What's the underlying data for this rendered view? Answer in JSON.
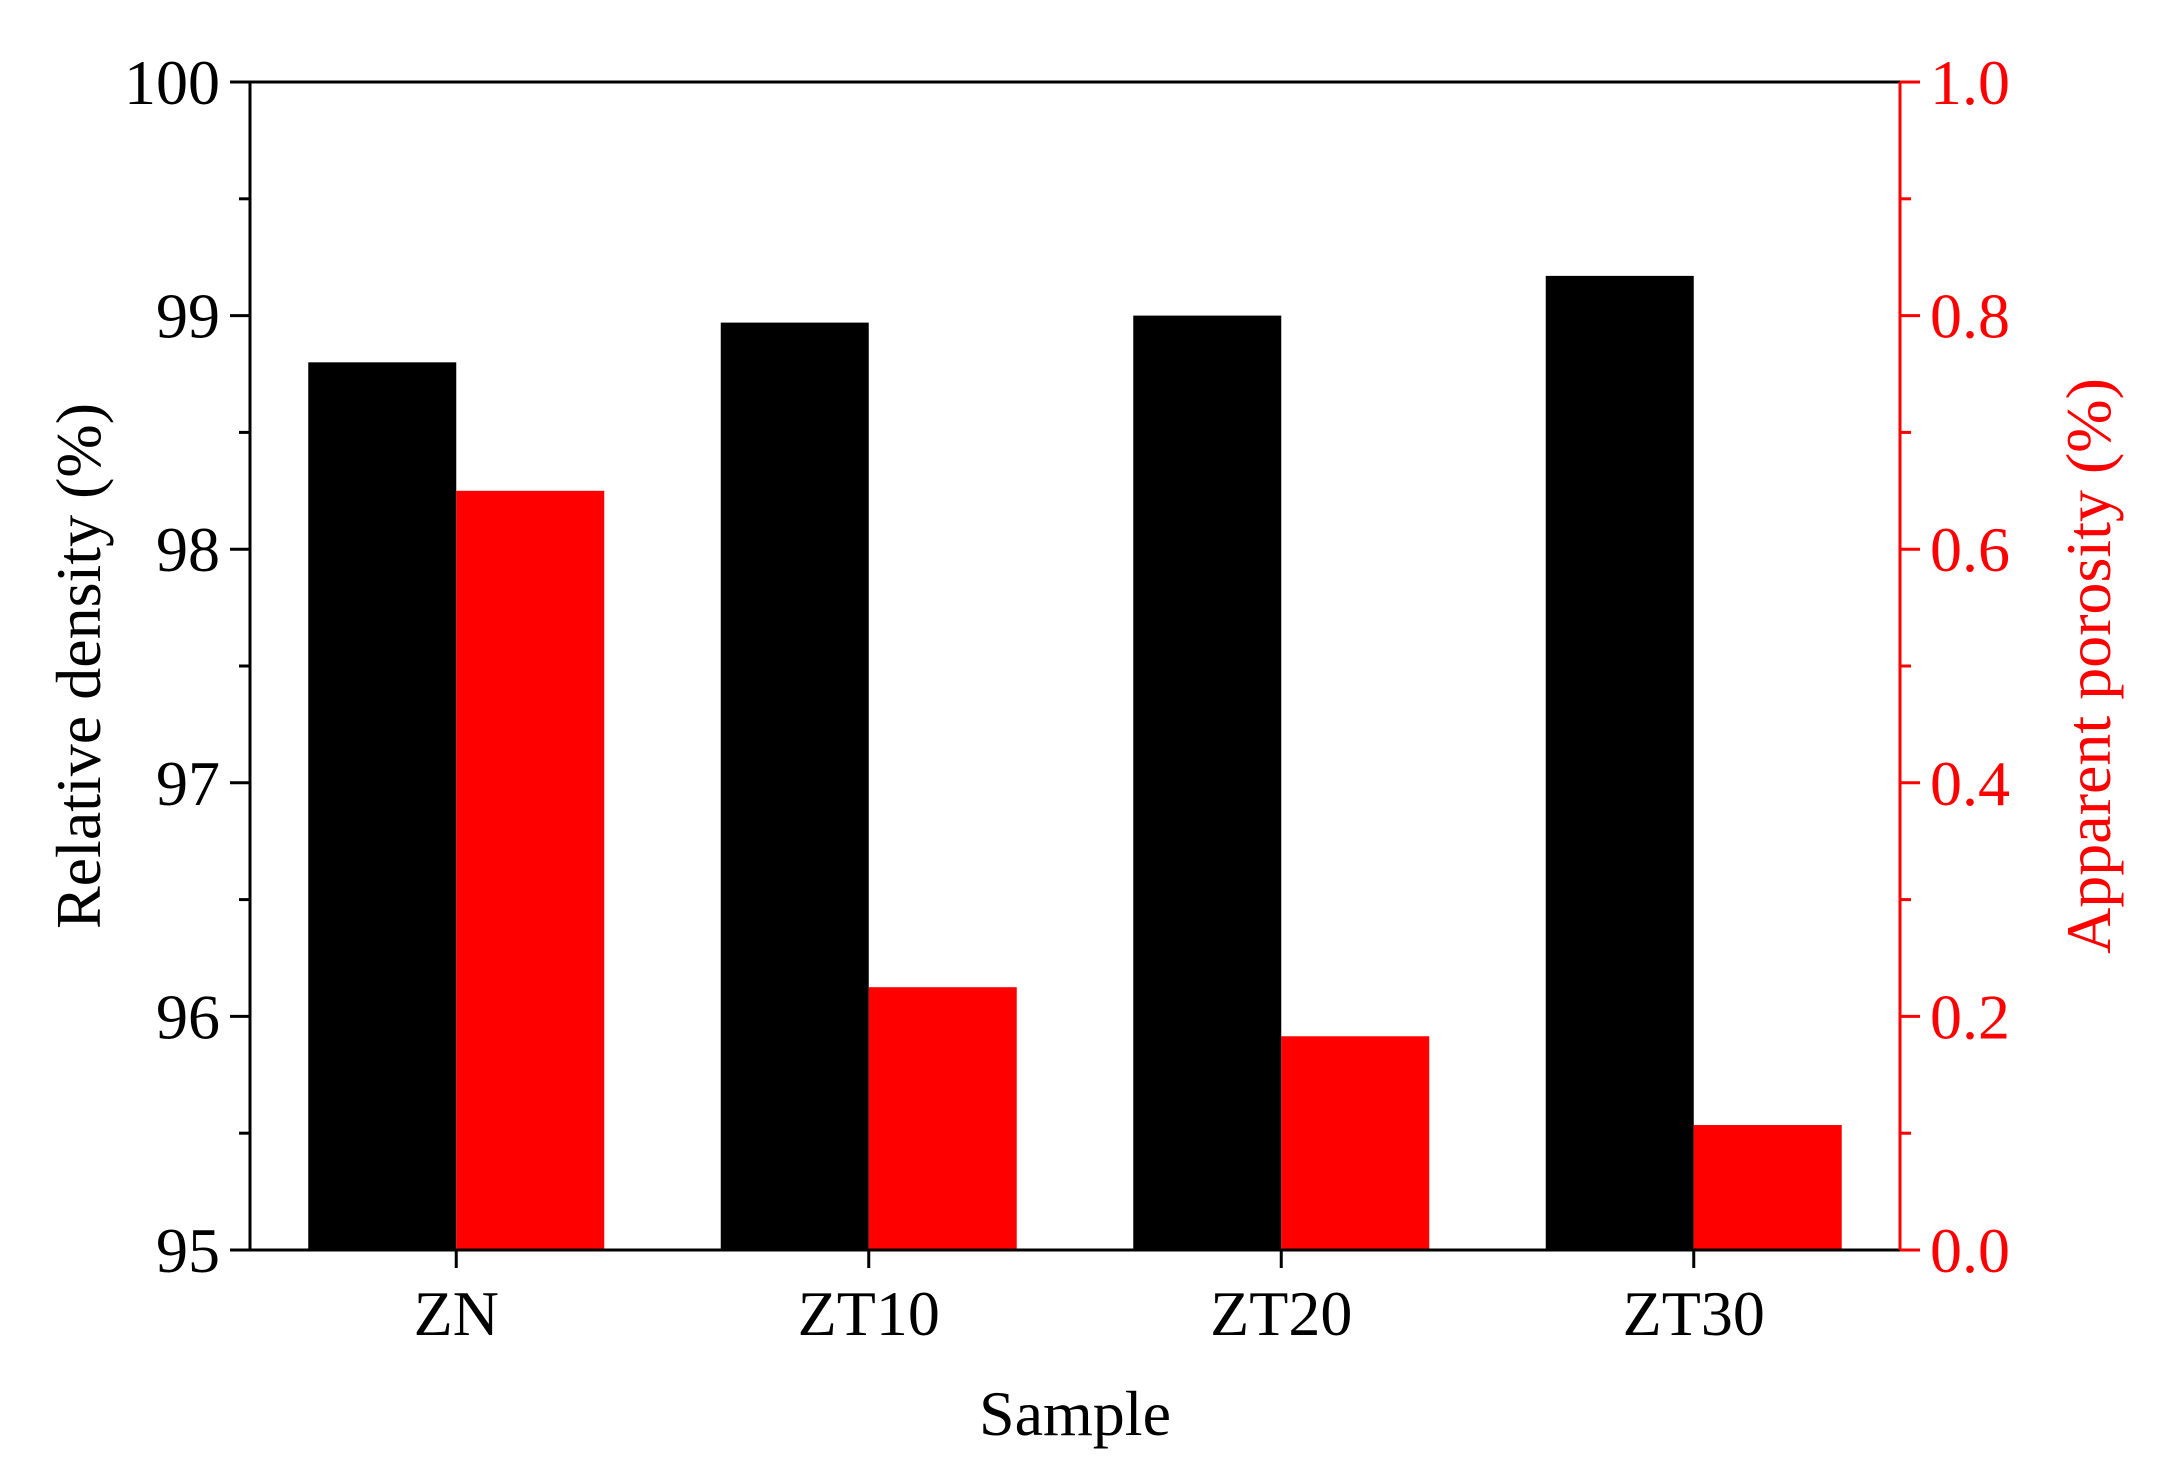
{
  "chart_data": {
    "type": "bar",
    "categories": [
      "ZN",
      "ZT10",
      "ZT20",
      "ZT30"
    ],
    "series": [
      {
        "values": [
          98.8,
          98.97,
          99.0,
          99.17
        ],
        "color": "#000000",
        "axis": "left"
      },
      {
        "values": [
          0.65,
          0.225,
          0.183,
          0.107
        ],
        "color": "#ff0000",
        "axis": "right"
      }
    ],
    "xlabel": "Sample",
    "ylabel": "Relative density (%)",
    "y2label": "Apparent porosity (%)",
    "ylim": [
      95,
      100
    ],
    "y2lim": [
      0.0,
      1.0
    ],
    "yticks": [
      "95",
      "96",
      "97",
      "98",
      "99",
      "100"
    ],
    "y2ticks": [
      "0.0",
      "0.2",
      "0.4",
      "0.6",
      "0.8",
      "1.0"
    ],
    "grid": false,
    "legend": "none",
    "colors": {
      "axis_left": "#000000",
      "axis_right": "#ff0000"
    }
  }
}
